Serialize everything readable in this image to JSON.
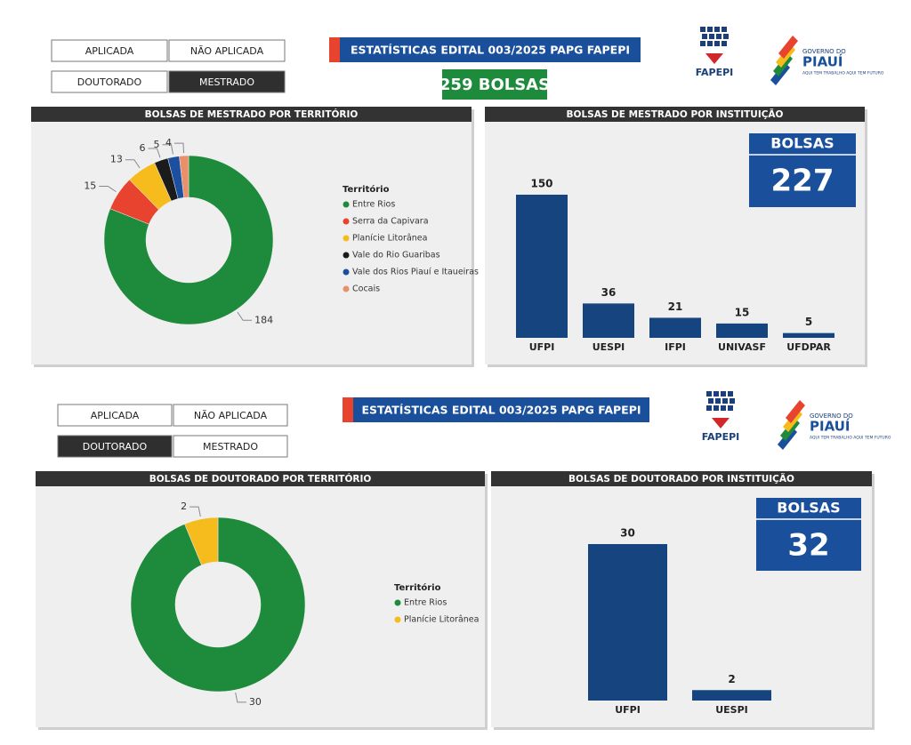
{
  "dashboards": [
    {
      "filters": [
        {
          "label": "APLICADA",
          "selected": false
        },
        {
          "label": "NÃO APLICADA",
          "selected": false
        },
        {
          "label": "DOUTORADO",
          "selected": false
        },
        {
          "label": "MESTRADO",
          "selected": true
        }
      ],
      "banner": "ESTATÍSTICAS EDITAL 003/2025 PAPG FAPEPI",
      "total": "259 BOLSAS"
    },
    {
      "filters": [
        {
          "label": "APLICADA",
          "selected": false
        },
        {
          "label": "NÃO APLICADA",
          "selected": false
        },
        {
          "label": "DOUTORADO",
          "selected": true
        },
        {
          "label": "MESTRADO",
          "selected": false
        }
      ],
      "banner": "ESTATÍSTICAS EDITAL 003/2025 PAPG FAPEPI"
    }
  ],
  "logos": {
    "fapepi": "FAPEPI",
    "governo": "GOVERNO DO",
    "piaui": "PIAUÍ",
    "slogan": "AQUI TEM TRABALHO AQUI TEM FUTURO"
  },
  "chart_data": [
    {
      "type": "pie",
      "title": "BOLSAS DE MESTRADO POR TERRITÓRIO",
      "legend_title": "Território",
      "categories": [
        "Entre Rios",
        "Serra da Capivara",
        "Planície Litorânea",
        "Vale do Rio Guaribas",
        "Vale dos Rios Piauí e Itaueiras",
        "Cocais"
      ],
      "values": [
        184,
        15,
        13,
        6,
        5,
        4
      ],
      "colors": [
        "#1e8a3c",
        "#e8432f",
        "#f6bb1d",
        "#1b1b1b",
        "#1c4fa0",
        "#e8906a"
      ]
    },
    {
      "type": "bar",
      "title": "BOLSAS DE MESTRADO POR INSTITUIÇÃO",
      "categories": [
        "UFPI",
        "UESPI",
        "IFPI",
        "UNIVASF",
        "UFDPAR"
      ],
      "values": [
        150,
        36,
        21,
        15,
        5
      ],
      "color": "#15447f",
      "card_label": "BOLSAS",
      "card_value": 227
    },
    {
      "type": "pie",
      "title": "BOLSAS DE DOUTORADO POR TERRITÓRIO",
      "legend_title": "Território",
      "categories": [
        "Entre Rios",
        "Planície Litorânea"
      ],
      "values": [
        30,
        2
      ],
      "colors": [
        "#1e8a3c",
        "#f6bb1d"
      ]
    },
    {
      "type": "bar",
      "title": "BOLSAS DE DOUTORADO POR INSTITUIÇÃO",
      "categories": [
        "UFPI",
        "UESPI"
      ],
      "values": [
        30,
        2
      ],
      "color": "#15447f",
      "card_label": "BOLSAS",
      "card_value": 32
    }
  ]
}
